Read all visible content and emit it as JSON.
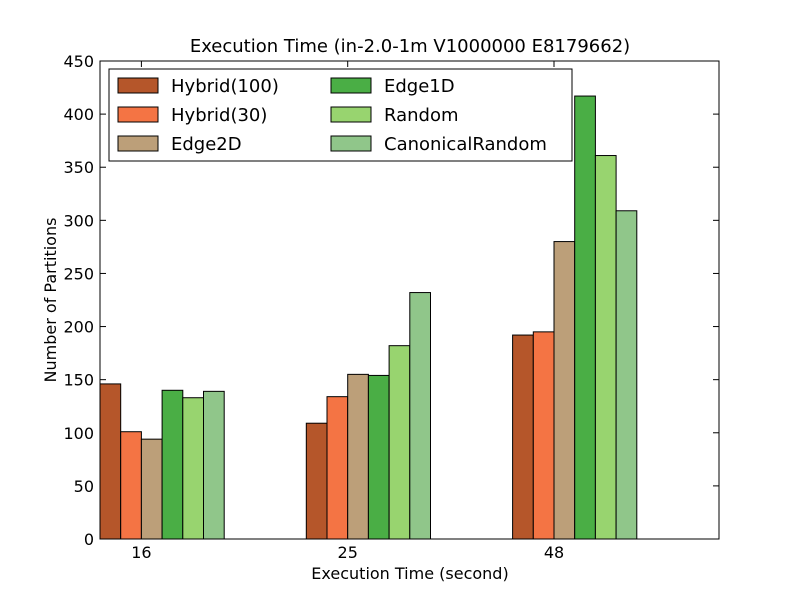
{
  "chart_data": {
    "type": "bar",
    "title": "Execution Time (in-2.0-1m V1000000 E8179662)",
    "xlabel": "Execution Time (second)",
    "ylabel": "Number of Partitions",
    "categories": [
      "16",
      "25",
      "48"
    ],
    "ylim": [
      0,
      450
    ],
    "yticks": [
      0,
      50,
      100,
      150,
      200,
      250,
      300,
      350,
      400,
      450
    ],
    "legend_placement": "top-left",
    "grid": false,
    "series": [
      {
        "name": "Hybrid(100)",
        "color": "#b5562a",
        "values": [
          146,
          109,
          192
        ]
      },
      {
        "name": "Hybrid(30)",
        "color": "#f47444",
        "values": [
          101,
          134,
          195
        ]
      },
      {
        "name": "Edge2D",
        "color": "#bc9f79",
        "values": [
          94,
          155,
          280
        ]
      },
      {
        "name": "Edge1D",
        "color": "#4aae45",
        "values": [
          140,
          154,
          417
        ]
      },
      {
        "name": "Random",
        "color": "#98d46f",
        "values": [
          133,
          182,
          361
        ]
      },
      {
        "name": "CanonicalRandom",
        "color": "#90c68a",
        "values": [
          139,
          232,
          309
        ]
      }
    ]
  }
}
